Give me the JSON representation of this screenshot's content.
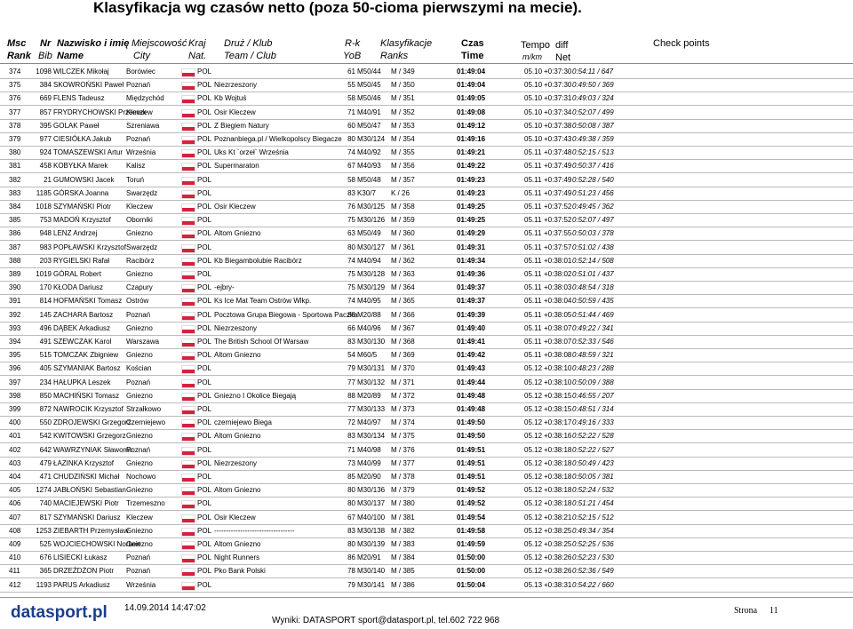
{
  "title": "Klasyfikacja wg czasów netto (poza 50-cioma pierwszymi na mecie).",
  "header": {
    "msc": "Msc",
    "rank": "Rank",
    "nr": "Nr",
    "bib": "Bib",
    "nazwisko": "Nazwisko i imię",
    "name": "Name",
    "miejscowosc": "Miejscowość",
    "city": "City",
    "kraj": "Kraj",
    "nat": "Nat.",
    "druz": "Druż / Klub",
    "team": "Team / Club",
    "rk": "R-k",
    "yob": "YoB",
    "klasyfikacje": "Klasyfikacje",
    "ranks": "Ranks",
    "czas": "Czas",
    "time": "Time",
    "tempo": "Tempo",
    "mkm": "m/km",
    "diff": "diff",
    "net": "Net",
    "checkpoints": "Check points"
  },
  "rows": [
    {
      "msc": "374",
      "bib": "1098",
      "name": "WILCZEK Mikołaj",
      "city": "Borówiec",
      "nat": "POL",
      "yob": "61",
      "cat": "M50/44",
      "rank": "M / 349",
      "time": "01:49:04",
      "tempo": "05.10",
      "diff": "+0:37:30",
      "net": "0:54:11 / 647"
    },
    {
      "msc": "375",
      "bib": "384",
      "name": "SKOWROŃSKI Paweł",
      "city": "Poznań",
      "nat": "POL",
      "club": "Niezrzeszony",
      "yob": "55",
      "cat": "M50/45",
      "rank": "M / 350",
      "time": "01:49:04",
      "tempo": "05.10",
      "diff": "+0:37:30",
      "net": "0:49:50 / 369"
    },
    {
      "msc": "376",
      "bib": "669",
      "name": "FLENS Tadeusz",
      "city": "Międzychód",
      "nat": "POL",
      "club": "Kb Wojtuś",
      "yob": "58",
      "cat": "M50/46",
      "rank": "M / 351",
      "time": "01:49:05",
      "tempo": "05.10",
      "diff": "+0:37:31",
      "net": "0:49:03 / 324"
    },
    {
      "msc": "377",
      "bib": "857",
      "name": "FRYDRYCHOWSKI Przemek",
      "city": "Kleczew",
      "nat": "POL",
      "club": "Osir Kleczew",
      "yob": "71",
      "cat": "M40/91",
      "rank": "M / 352",
      "time": "01:49:08",
      "tempo": "05.10",
      "diff": "+0:37:34",
      "net": "0:52:07 / 499"
    },
    {
      "msc": "378",
      "bib": "395",
      "name": "GOLAK Paweł",
      "city": "Szreniawa",
      "nat": "POL",
      "club": "Z Biegiem Natury",
      "yob": "60",
      "cat": "M50/47",
      "rank": "M / 353",
      "time": "01:49:12",
      "tempo": "05.10",
      "diff": "+0:37:38",
      "net": "0:50:08 / 387"
    },
    {
      "msc": "379",
      "bib": "977",
      "name": "CIESIÓŁKA Jakub",
      "city": "Poznań",
      "nat": "POL",
      "club": "Poznanbiega.pl / Wielkopolscy Biegacze",
      "yob": "80",
      "cat": "M30/124",
      "rank": "M / 354",
      "time": "01:49:16",
      "tempo": "05.10",
      "diff": "+0:37:43",
      "net": "0:49:38 / 359"
    },
    {
      "msc": "380",
      "bib": "924",
      "name": "TOMASZEWSKI Artur",
      "city": "Września",
      "nat": "POL",
      "club": "Uks Kt `orzeł` Września",
      "yob": "74",
      "cat": "M40/92",
      "rank": "M / 355",
      "time": "01:49:21",
      "tempo": "05.11",
      "diff": "+0:37:48",
      "net": "0:52:15 / 513"
    },
    {
      "msc": "381",
      "bib": "458",
      "name": "KOBYŁKA Marek",
      "city": "Kalisz",
      "nat": "POL",
      "club": "Supermaraton",
      "yob": "67",
      "cat": "M40/93",
      "rank": "M / 356",
      "time": "01:49:22",
      "tempo": "05.11",
      "diff": "+0:37:49",
      "net": "0:50:37 / 416"
    },
    {
      "msc": "382",
      "bib": "21",
      "name": "GUMOWSKI Jacek",
      "city": "Toruń",
      "nat": "POL",
      "yob": "58",
      "cat": "M50/48",
      "rank": "M / 357",
      "time": "01:49:23",
      "tempo": "05.11",
      "diff": "+0:37:49",
      "net": "0:52:28 / 540"
    },
    {
      "msc": "383",
      "bib": "1185",
      "name": "GÓRSKA Joanna",
      "city": "Swarzędz",
      "nat": "POL",
      "yob": "83",
      "cat": "K30/7",
      "rank": "K / 26",
      "time": "01:49:23",
      "tempo": "05.11",
      "diff": "+0:37:49",
      "net": "0:51:23 / 456"
    },
    {
      "msc": "384",
      "bib": "1018",
      "name": "SZYMAŃSKI Piotr",
      "city": "Kleczew",
      "nat": "POL",
      "club": "Osir Kleczew",
      "yob": "76",
      "cat": "M30/125",
      "rank": "M / 358",
      "time": "01:49:25",
      "tempo": "05.11",
      "diff": "+0:37:52",
      "net": "0:49:45 / 362"
    },
    {
      "msc": "385",
      "bib": "753",
      "name": "MADOŃ Krzysztof",
      "city": "Oborniki",
      "nat": "POL",
      "yob": "75",
      "cat": "M30/126",
      "rank": "M / 359",
      "time": "01:49:25",
      "tempo": "05.11",
      "diff": "+0:37:52",
      "net": "0:52:07 / 497"
    },
    {
      "msc": "386",
      "bib": "948",
      "name": "LENZ Andrzej",
      "city": "Gniezno",
      "nat": "POL",
      "club": "Altom Gniezno",
      "yob": "63",
      "cat": "M50/49",
      "rank": "M / 360",
      "time": "01:49:29",
      "tempo": "05.11",
      "diff": "+0:37:55",
      "net": "0:50:03 / 378"
    },
    {
      "msc": "387",
      "bib": "983",
      "name": "POPŁAWSKI Krzysztof",
      "city": "Swarzędz",
      "nat": "POL",
      "yob": "80",
      "cat": "M30/127",
      "rank": "M / 361",
      "time": "01:49:31",
      "tempo": "05.11",
      "diff": "+0:37:57",
      "net": "0:51:02 / 438"
    },
    {
      "msc": "388",
      "bib": "203",
      "name": "RYGIELSKI Rafał",
      "city": "Racibórz",
      "nat": "POL",
      "club": "Kb Biegambolubie Racibórz",
      "yob": "74",
      "cat": "M40/94",
      "rank": "M / 362",
      "time": "01:49:34",
      "tempo": "05.11",
      "diff": "+0:38:01",
      "net": "0:52:14 / 508"
    },
    {
      "msc": "389",
      "bib": "1019",
      "name": "GÓRAL Robert",
      "city": "Gniezno",
      "nat": "POL",
      "yob": "75",
      "cat": "M30/128",
      "rank": "M / 363",
      "time": "01:49:36",
      "tempo": "05.11",
      "diff": "+0:38:02",
      "net": "0:51:01 / 437"
    },
    {
      "msc": "390",
      "bib": "170",
      "name": "KŁODA Dariusz",
      "city": "Czapury",
      "nat": "POL",
      "club": "-ejbry-",
      "yob": "75",
      "cat": "M30/129",
      "rank": "M / 364",
      "time": "01:49:37",
      "tempo": "05.11",
      "diff": "+0:38:03",
      "net": "0:48:54 / 318"
    },
    {
      "msc": "391",
      "bib": "814",
      "name": "HOFMAŃSKI Tomasz",
      "city": "Ostrów",
      "nat": "POL",
      "club": "Ks Ice Mat Team Ostrów Wlkp.",
      "yob": "74",
      "cat": "M40/95",
      "rank": "M / 365",
      "time": "01:49:37",
      "tempo": "05.11",
      "diff": "+0:38:04",
      "net": "0:50:59 / 435"
    },
    {
      "msc": "392",
      "bib": "145",
      "name": "ZACHARA Bartosz",
      "city": "Poznań",
      "nat": "POL",
      "club": "Pocztowa Grupa Biegowa - Sportowa Paczka",
      "yob": "88",
      "cat": "M20/88",
      "rank": "M / 366",
      "time": "01:49:39",
      "tempo": "05.11",
      "diff": "+0:38:05",
      "net": "0:51:44 / 469"
    },
    {
      "msc": "393",
      "bib": "496",
      "name": "DĄBEK Arkadiusz",
      "city": "Gniezno",
      "nat": "POL",
      "club": "Niezrzeszony",
      "yob": "66",
      "cat": "M40/96",
      "rank": "M / 367",
      "time": "01:49:40",
      "tempo": "05.11",
      "diff": "+0:38:07",
      "net": "0:49:22 / 341"
    },
    {
      "msc": "394",
      "bib": "491",
      "name": "SZEWCZAK Karol",
      "city": "Warszawa",
      "nat": "POL",
      "club": "The British School Of Warsaw",
      "yob": "83",
      "cat": "M30/130",
      "rank": "M / 368",
      "time": "01:49:41",
      "tempo": "05.11",
      "diff": "+0:38:07",
      "net": "0:52:33 / 546"
    },
    {
      "msc": "395",
      "bib": "515",
      "name": "TOMCZAK Zbigniew",
      "city": "Gniezno",
      "nat": "POL",
      "club": "Altom Gniezno",
      "yob": "54",
      "cat": "M60/5",
      "rank": "M / 369",
      "time": "01:49:42",
      "tempo": "05.11",
      "diff": "+0:38:08",
      "net": "0:48:59 / 321"
    },
    {
      "msc": "396",
      "bib": "405",
      "name": "SZYMANIAK Bartosz",
      "city": "Kościan",
      "nat": "POL",
      "yob": "79",
      "cat": "M30/131",
      "rank": "M / 370",
      "time": "01:49:43",
      "tempo": "05.12",
      "diff": "+0:38:10",
      "net": "0:48:23 / 288"
    },
    {
      "msc": "397",
      "bib": "234",
      "name": "HAŁUPKA Leszek",
      "city": "Poznań",
      "nat": "POL",
      "yob": "77",
      "cat": "M30/132",
      "rank": "M / 371",
      "time": "01:49:44",
      "tempo": "05.12",
      "diff": "+0:38:10",
      "net": "0:50:09 / 388"
    },
    {
      "msc": "398",
      "bib": "850",
      "name": "MACHIŃSKI Tomasz",
      "city": "Gniezno",
      "nat": "POL",
      "club": "Gniezno I Okolice Biegają",
      "yob": "88",
      "cat": "M20/89",
      "rank": "M / 372",
      "time": "01:49:48",
      "tempo": "05.12",
      "diff": "+0:38:15",
      "net": "0:46:55 / 207"
    },
    {
      "msc": "399",
      "bib": "872",
      "name": "NAWROCIK Krzysztof",
      "city": "Strzałkowo",
      "nat": "POL",
      "yob": "77",
      "cat": "M30/133",
      "rank": "M / 373",
      "time": "01:49:48",
      "tempo": "05.12",
      "diff": "+0:38:15",
      "net": "0:48:51 / 314"
    },
    {
      "msc": "400",
      "bib": "550",
      "name": "ZDROJEWSKI Grzegorz",
      "city": "Czerniejewo",
      "nat": "POL",
      "club": "czerniejewo Biega",
      "yob": "72",
      "cat": "M40/97",
      "rank": "M / 374",
      "time": "01:49:50",
      "tempo": "05.12",
      "diff": "+0:38:17",
      "net": "0:49:16 / 333"
    },
    {
      "msc": "401",
      "bib": "542",
      "name": "KWITOWSKI Grzegorz",
      "city": "Gniezno",
      "nat": "POL",
      "club": "Altom Gniezno",
      "yob": "83",
      "cat": "M30/134",
      "rank": "M / 375",
      "time": "01:49:50",
      "tempo": "05.12",
      "diff": "+0:38:16",
      "net": "0:52:22 / 528"
    },
    {
      "msc": "402",
      "bib": "642",
      "name": "WAWRZYNIAK Sławomir",
      "city": "Poznań",
      "nat": "POL",
      "yob": "71",
      "cat": "M40/98",
      "rank": "M / 376",
      "time": "01:49:51",
      "tempo": "05.12",
      "diff": "+0:38:18",
      "net": "0:52:22 / 527"
    },
    {
      "msc": "403",
      "bib": "479",
      "name": "ŁAZINKA Krzysztof",
      "city": "Gniezno",
      "nat": "POL",
      "club": "Niezrzeszony",
      "yob": "73",
      "cat": "M40/99",
      "rank": "M / 377",
      "time": "01:49:51",
      "tempo": "05.12",
      "diff": "+0:38:18",
      "net": "0:50:49 / 423"
    },
    {
      "msc": "404",
      "bib": "471",
      "name": "CHUDZIŃSKI Michał",
      "city": "Nochowo",
      "nat": "POL",
      "yob": "85",
      "cat": "M20/90",
      "rank": "M / 378",
      "time": "01:49:51",
      "tempo": "05.12",
      "diff": "+0:38:18",
      "net": "0:50:05 / 381"
    },
    {
      "msc": "405",
      "bib": "1274",
      "name": "JABŁOŃSKI Sebastian",
      "city": "Gniezno",
      "nat": "POL",
      "club": "Altom Gniezno",
      "yob": "80",
      "cat": "M30/136",
      "rank": "M / 379",
      "time": "01:49:52",
      "tempo": "05.12",
      "diff": "+0:38:18",
      "net": "0:52:24 / 532"
    },
    {
      "msc": "406",
      "bib": "740",
      "name": "MACIEJEWSKI Piotr",
      "city": "Trzemeszno",
      "nat": "POL",
      "yob": "80",
      "cat": "M30/137",
      "rank": "M / 380",
      "time": "01:49:52",
      "tempo": "05.12",
      "diff": "+0:38:18",
      "net": "0:51:21 / 454"
    },
    {
      "msc": "407",
      "bib": "817",
      "name": "SZYMAŃSKI Dariusz",
      "city": "Kleczew",
      "nat": "POL",
      "club": "Osir Kleczew",
      "yob": "67",
      "cat": "M40/100",
      "rank": "M / 381",
      "time": "01:49:54",
      "tempo": "05.12",
      "diff": "+0:38:21",
      "net": "0:52:15 / 512"
    },
    {
      "msc": "408",
      "bib": "1253",
      "name": "ZIEBARTH Przemysław",
      "city": "Gniezno",
      "nat": "POL",
      "club": "----------------------------------",
      "yob": "83",
      "cat": "M30/138",
      "rank": "M / 382",
      "time": "01:49:58",
      "tempo": "05.12",
      "diff": "+0:38:25",
      "net": "0:49:34 / 354"
    },
    {
      "msc": "409",
      "bib": "525",
      "name": "WOJCIECHOWSKI Norbert",
      "city": "Gniezno",
      "nat": "POL",
      "club": "Altom Gniezno",
      "yob": "80",
      "cat": "M30/139",
      "rank": "M / 383",
      "time": "01:49:59",
      "tempo": "05.12",
      "diff": "+0:38:25",
      "net": "0:52:25 / 536"
    },
    {
      "msc": "410",
      "bib": "676",
      "name": "LISIECKI Łukasz",
      "city": "Poznań",
      "nat": "POL",
      "club": "Night Runners",
      "yob": "86",
      "cat": "M20/91",
      "rank": "M / 384",
      "time": "01:50:00",
      "tempo": "05.12",
      "diff": "+0:38:26",
      "net": "0:52:23 / 530"
    },
    {
      "msc": "411",
      "bib": "365",
      "name": "DRZEŹDŻON Piotr",
      "city": "Poznań",
      "nat": "POL",
      "club": "Pko Bank Polski",
      "yob": "78",
      "cat": "M30/140",
      "rank": "M / 385",
      "time": "01:50:00",
      "tempo": "05.12",
      "diff": "+0:38:26",
      "net": "0:52:36 / 549"
    },
    {
      "msc": "412",
      "bib": "1193",
      "name": "PARUS Arkadiusz",
      "city": "Września",
      "nat": "POL",
      "yob": "79",
      "cat": "M30/141",
      "rank": "M / 386",
      "time": "01:50:04",
      "tempo": "05.13",
      "diff": "+0:38:31",
      "net": "0:54:22 / 660"
    }
  ],
  "footer": {
    "logo": "datasport.pl",
    "date": "14.09.2014 14:47:02",
    "contact": "Wyniki: DATASPORT sport@datasport.pl, tel.602 722 968",
    "page_label": "Strona",
    "page": "11"
  }
}
